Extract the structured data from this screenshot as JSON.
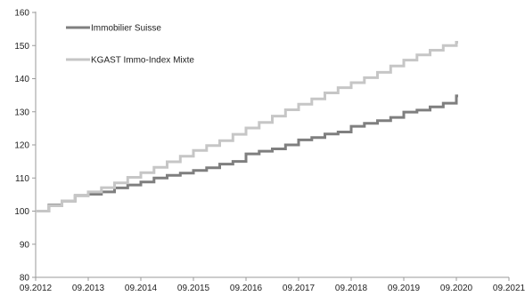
{
  "chart_data": {
    "type": "line",
    "title": "",
    "xlabel": "",
    "ylabel": "",
    "ylim": [
      80,
      160
    ],
    "y_ticks": [
      80,
      90,
      100,
      110,
      120,
      130,
      140,
      150,
      160
    ],
    "x_ticks": [
      "09.2012",
      "09.2013",
      "09.2014",
      "09.2015",
      "09.2016",
      "09.2017",
      "09.2018",
      "09.2019",
      "09.2020",
      "09.2021"
    ],
    "x_range": [
      2012.67,
      2021.67
    ],
    "grid": false,
    "legend_position": "top-left",
    "step_interval_years": 0.25,
    "series": [
      {
        "name": "Immobilier Suisse",
        "color": "#7f7f7f",
        "x": [
          2012.67,
          2012.92,
          2013.17,
          2013.42,
          2013.67,
          2013.92,
          2014.17,
          2014.42,
          2014.67,
          2014.92,
          2015.17,
          2015.42,
          2015.67,
          2015.92,
          2016.17,
          2016.42,
          2016.67,
          2016.92,
          2017.17,
          2017.42,
          2017.67,
          2017.92,
          2018.17,
          2018.42,
          2018.67,
          2018.92,
          2019.17,
          2019.42,
          2019.67,
          2019.92,
          2020.17,
          2020.42,
          2020.67
        ],
        "y": [
          100,
          101.8,
          103,
          104.7,
          105.1,
          105.8,
          107,
          107.9,
          108.8,
          110,
          110.8,
          111.5,
          112.3,
          113.1,
          114.2,
          115,
          117.3,
          118.1,
          118.8,
          120,
          121.5,
          122.2,
          123.3,
          123.9,
          125.6,
          126.5,
          127.3,
          128.3,
          129.9,
          130.5,
          131.5,
          132.6,
          134.8
        ]
      },
      {
        "name": "KGAST Immo-Index Mixte",
        "color": "#c6c6c6",
        "x": [
          2012.67,
          2012.92,
          2013.17,
          2013.42,
          2013.67,
          2013.92,
          2014.17,
          2014.42,
          2014.67,
          2014.92,
          2015.17,
          2015.42,
          2015.67,
          2015.92,
          2016.17,
          2016.42,
          2016.67,
          2016.92,
          2017.17,
          2017.42,
          2017.67,
          2017.92,
          2018.17,
          2018.42,
          2018.67,
          2018.92,
          2019.17,
          2019.42,
          2019.67,
          2019.92,
          2020.17,
          2020.42,
          2020.67
        ],
        "y": [
          100,
          101.6,
          103.1,
          104.6,
          105.8,
          107.1,
          108.5,
          110.2,
          111.6,
          113.2,
          114.9,
          116.6,
          118.3,
          119.8,
          121.3,
          123.2,
          125.1,
          126.8,
          128.7,
          130.6,
          132.3,
          133.9,
          135.7,
          137.3,
          138.8,
          140.3,
          141.9,
          143.8,
          145.6,
          147.2,
          148.6,
          150.0,
          151.0
        ]
      }
    ]
  }
}
